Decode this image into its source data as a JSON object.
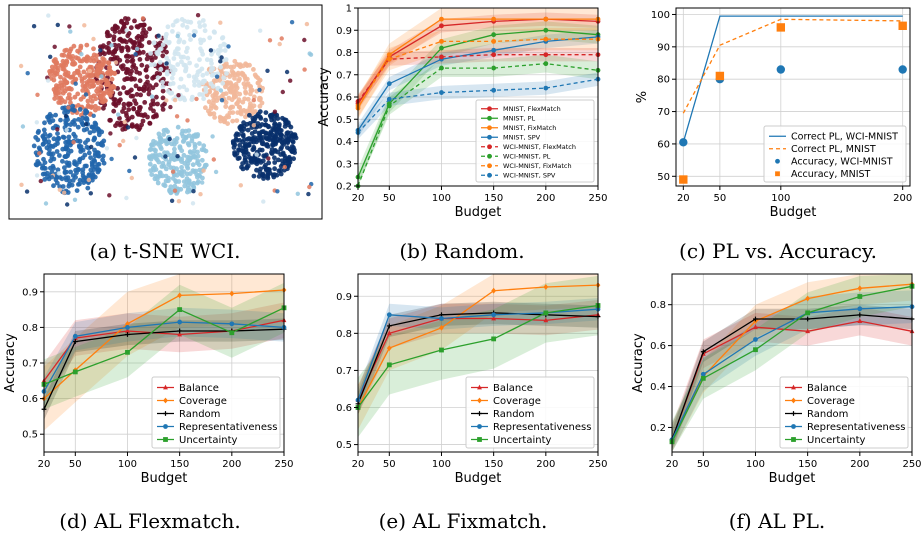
{
  "colors": {
    "red": "#d62728",
    "green": "#2ca02c",
    "orange": "#ff7f0e",
    "blue": "#1f77b4",
    "black": "#000000"
  },
  "chart_data": [
    {
      "id": "a",
      "type": "scatter",
      "caption": "(a) t-SNE WCI.",
      "title": "",
      "xlabel": "",
      "ylabel": "",
      "clusters": [
        {
          "color": "#6b0f2a",
          "points": 320
        },
        {
          "color": "#e07a5f",
          "points": 260
        },
        {
          "color": "#f2b89a",
          "points": 200
        },
        {
          "color": "#2166ac",
          "points": 280
        },
        {
          "color": "#08306b",
          "points": 300
        },
        {
          "color": "#92c5de",
          "points": 220
        },
        {
          "color": "#d1e5f0",
          "points": 160
        }
      ]
    },
    {
      "id": "b",
      "type": "line",
      "caption": "(b) Random.",
      "xlabel": "Budget",
      "ylabel": "Accuracy",
      "x": [
        20,
        50,
        100,
        150,
        200,
        250
      ],
      "xticks": [
        20,
        50,
        100,
        150,
        200,
        250
      ],
      "yticks": [
        0.2,
        0.3,
        0.4,
        0.5,
        0.6,
        0.7,
        0.8,
        0.9,
        1.0
      ],
      "xlim": [
        20,
        250
      ],
      "ylim": [
        0.2,
        1.0
      ],
      "grid": true,
      "legend_position": "lower-right",
      "series": [
        {
          "name": "MNIST, FlexMatch",
          "color": "#d62728",
          "dash": false,
          "marker": "circle",
          "values": [
            0.57,
            0.78,
            0.92,
            0.94,
            0.95,
            0.94
          ],
          "band": 0.03
        },
        {
          "name": "MNIST, PL",
          "color": "#2ca02c",
          "dash": false,
          "marker": "circle",
          "values": [
            0.24,
            0.57,
            0.82,
            0.88,
            0.9,
            0.88
          ],
          "band": 0.04
        },
        {
          "name": "MNIST, FixMatch",
          "color": "#ff7f0e",
          "dash": false,
          "marker": "circle",
          "values": [
            0.55,
            0.79,
            0.95,
            0.95,
            0.95,
            0.95
          ],
          "band": 0.05
        },
        {
          "name": "MNIST, SPV",
          "color": "#1f77b4",
          "dash": false,
          "marker": "circle",
          "values": [
            0.45,
            0.66,
            0.77,
            0.81,
            0.85,
            0.87
          ],
          "band": 0.03
        },
        {
          "name": "WCI-MNIST, FlexMatch",
          "color": "#d62728",
          "dash": true,
          "marker": "circle",
          "values": [
            0.58,
            0.77,
            0.78,
            0.79,
            0.79,
            0.79
          ],
          "band": 0.03
        },
        {
          "name": "WCI-MNIST, PL",
          "color": "#2ca02c",
          "dash": true,
          "marker": "circle",
          "values": [
            0.2,
            0.56,
            0.73,
            0.73,
            0.75,
            0.72
          ],
          "band": 0.04
        },
        {
          "name": "WCI-MNIST, FixMatch",
          "color": "#ff7f0e",
          "dash": true,
          "marker": "circle",
          "values": [
            0.56,
            0.77,
            0.85,
            0.85,
            0.86,
            0.86
          ],
          "band": 0.05
        },
        {
          "name": "WCI-MNIST, SPV",
          "color": "#1f77b4",
          "dash": true,
          "marker": "circle",
          "values": [
            0.44,
            0.59,
            0.62,
            0.63,
            0.64,
            0.68
          ],
          "band": 0.03
        }
      ]
    },
    {
      "id": "c",
      "type": "line",
      "caption": "(c) PL vs. Accuracy.",
      "xlabel": "Budget",
      "ylabel": "%",
      "x": [
        20,
        50,
        100,
        200
      ],
      "xticks": [
        20,
        50,
        100,
        200
      ],
      "yticks": [
        50,
        60,
        70,
        80,
        90,
        100
      ],
      "xlim": [
        14,
        206
      ],
      "ylim": [
        47,
        102
      ],
      "grid": true,
      "legend_position": "lower-right",
      "series": [
        {
          "name": "Correct PL, WCI-MNIST",
          "color": "#1f77b4",
          "dash": false,
          "marker": "none",
          "values": [
            60.5,
            99.5,
            99.5,
            99.5
          ]
        },
        {
          "name": "Correct PL, MNIST",
          "color": "#ff7f0e",
          "dash": true,
          "marker": "none",
          "values": [
            69.5,
            90.5,
            98.5,
            98
          ]
        },
        {
          "name": "Accuracy, WCI-MNIST",
          "color": "#1f77b4",
          "dash": false,
          "marker": "dot",
          "values": [
            60.5,
            80,
            83,
            83
          ]
        },
        {
          "name": "Accuracy, MNIST",
          "color": "#ff7f0e",
          "dash": false,
          "marker": "square",
          "values": [
            49,
            81,
            96,
            96.5
          ]
        }
      ]
    },
    {
      "id": "d",
      "type": "line",
      "caption": "(d) AL Flexmatch.",
      "xlabel": "Budget",
      "ylabel": "Accuracy",
      "x": [
        20,
        50,
        100,
        150,
        200,
        250
      ],
      "xticks": [
        20,
        50,
        100,
        150,
        200,
        250
      ],
      "yticks": [
        0.5,
        0.6,
        0.7,
        0.8,
        0.9
      ],
      "xlim": [
        20,
        250
      ],
      "ylim": [
        0.45,
        0.95
      ],
      "grid": true,
      "legend_position": "lower-right",
      "series": [
        {
          "name": "Balance",
          "color": "#d62728",
          "marker": "triangle",
          "values": [
            0.65,
            0.77,
            0.79,
            0.78,
            0.79,
            0.82
          ],
          "band": 0.05
        },
        {
          "name": "Coverage",
          "color": "#ff7f0e",
          "marker": "diamond",
          "values": [
            0.6,
            0.68,
            0.81,
            0.89,
            0.895,
            0.905
          ],
          "band": 0.09
        },
        {
          "name": "Random",
          "color": "#000000",
          "marker": "plus",
          "values": [
            0.57,
            0.76,
            0.78,
            0.79,
            0.79,
            0.795
          ],
          "band": 0.03
        },
        {
          "name": "Representativeness",
          "color": "#1f77b4",
          "marker": "circle",
          "values": [
            0.62,
            0.775,
            0.8,
            0.815,
            0.81,
            0.8
          ],
          "band": 0.04
        },
        {
          "name": "Uncertainty",
          "color": "#2ca02c",
          "marker": "square",
          "values": [
            0.64,
            0.675,
            0.73,
            0.85,
            0.785,
            0.855
          ],
          "band": 0.07
        }
      ]
    },
    {
      "id": "e",
      "type": "line",
      "caption": "(e) AL Fixmatch.",
      "xlabel": "Budget",
      "ylabel": "",
      "x": [
        20,
        50,
        100,
        150,
        200,
        250
      ],
      "xticks": [
        20,
        50,
        100,
        150,
        200,
        250
      ],
      "yticks": [
        0.5,
        0.6,
        0.7,
        0.8,
        0.9
      ],
      "xlim": [
        20,
        250
      ],
      "ylim": [
        0.48,
        0.96
      ],
      "grid": true,
      "legend_position": "lower-right",
      "series": [
        {
          "name": "Balance",
          "color": "#d62728",
          "marker": "triangle",
          "values": [
            0.62,
            0.8,
            0.84,
            0.84,
            0.835,
            0.85
          ],
          "band": 0.04
        },
        {
          "name": "Coverage",
          "color": "#ff7f0e",
          "marker": "diamond",
          "values": [
            0.6,
            0.76,
            0.815,
            0.915,
            0.925,
            0.93
          ],
          "band": 0.06
        },
        {
          "name": "Random",
          "color": "#000000",
          "marker": "plus",
          "values": [
            0.61,
            0.82,
            0.85,
            0.855,
            0.85,
            0.845
          ],
          "band": 0.03
        },
        {
          "name": "Representativeness",
          "color": "#1f77b4",
          "marker": "circle",
          "values": [
            0.62,
            0.85,
            0.84,
            0.85,
            0.855,
            0.865
          ],
          "band": 0.03
        },
        {
          "name": "Uncertainty",
          "color": "#2ca02c",
          "marker": "square",
          "values": [
            0.6,
            0.715,
            0.755,
            0.785,
            0.855,
            0.875
          ],
          "band": 0.08
        }
      ]
    },
    {
      "id": "f",
      "type": "line",
      "caption": "(f) AL PL.",
      "xlabel": "Budget",
      "ylabel": "Accuracy",
      "x": [
        20,
        50,
        100,
        150,
        200,
        250
      ],
      "xticks": [
        20,
        50,
        100,
        150,
        200,
        250
      ],
      "yticks": [
        0.2,
        0.4,
        0.6,
        0.8
      ],
      "xlim": [
        20,
        250
      ],
      "ylim": [
        0.08,
        0.95
      ],
      "grid": true,
      "legend_position": "lower-right",
      "series": [
        {
          "name": "Balance",
          "color": "#d62728",
          "marker": "triangle",
          "values": [
            0.14,
            0.56,
            0.69,
            0.67,
            0.72,
            0.67
          ],
          "band": 0.07
        },
        {
          "name": "Coverage",
          "color": "#ff7f0e",
          "marker": "diamond",
          "values": [
            0.14,
            0.45,
            0.72,
            0.83,
            0.88,
            0.9
          ],
          "band": 0.08
        },
        {
          "name": "Random",
          "color": "#000000",
          "marker": "plus",
          "values": [
            0.14,
            0.57,
            0.73,
            0.73,
            0.75,
            0.73
          ],
          "band": 0.05
        },
        {
          "name": "Representativeness",
          "color": "#1f77b4",
          "marker": "circle",
          "values": [
            0.14,
            0.46,
            0.63,
            0.76,
            0.78,
            0.79
          ],
          "band": 0.08
        },
        {
          "name": "Uncertainty",
          "color": "#2ca02c",
          "marker": "square",
          "values": [
            0.13,
            0.44,
            0.58,
            0.76,
            0.84,
            0.89
          ],
          "band": 0.1
        }
      ]
    }
  ]
}
